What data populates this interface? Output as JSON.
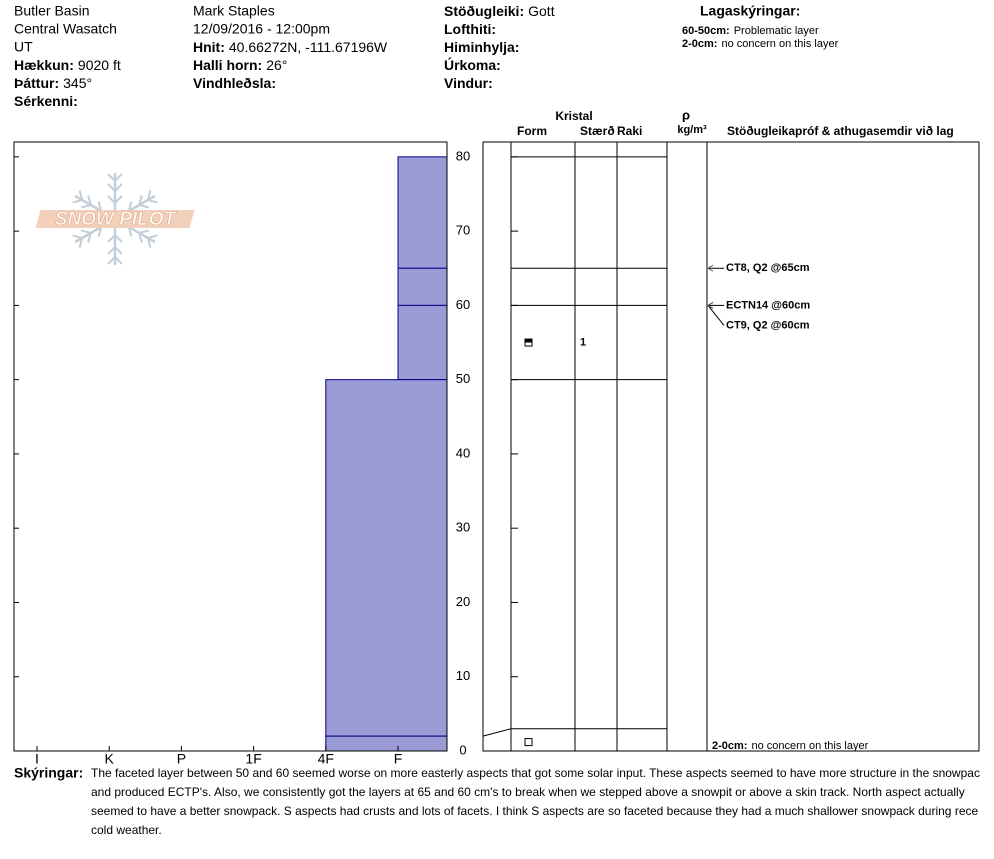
{
  "header": {
    "location": {
      "name": "Butler Basin",
      "range": "Central Wasatch",
      "state": "UT",
      "fields": [
        {
          "label": "Hækkun:",
          "value": "9020 ft"
        },
        {
          "label": "Þáttur:",
          "value": "345°"
        },
        {
          "label": "Sérkenni:"
        }
      ]
    },
    "observer": {
      "name": "Mark Staples",
      "datetime": "12/09/2016 - 12:00pm",
      "fields": [
        {
          "label": "Hnit:",
          "value": "40.66272N, -111.67196W"
        },
        {
          "label": "Halli horn:",
          "value": "26°"
        },
        {
          "label": "Vindhleðsla:"
        }
      ]
    },
    "conditions": [
      {
        "label": "Stöðugleiki:",
        "value": "Gott"
      },
      {
        "label": "Lofthiti:"
      },
      {
        "label": "Himinhylja:"
      },
      {
        "label": "Úrkoma:"
      },
      {
        "label": "Vindur:"
      }
    ],
    "legend": {
      "title": "Lagaskýringar:",
      "items": [
        {
          "label": "60-50cm:",
          "text": "Problematic layer"
        },
        {
          "label": "2-0cm:",
          "text": "no concern on this layer"
        }
      ]
    }
  },
  "logo": "SNOW PILOT",
  "profile": {
    "depth_lim": [
      0,
      82
    ],
    "depth_ticks": [
      0,
      10,
      20,
      30,
      40,
      50,
      60,
      70,
      80
    ],
    "hardness_scale": [
      "I",
      "K",
      "P",
      "1F",
      "4F",
      "F"
    ],
    "color": "#9b9bd7",
    "layers": [
      {
        "top": 80,
        "bottom": 65,
        "hardness": "F"
      },
      {
        "top": 65,
        "bottom": 60,
        "hardness": "F"
      },
      {
        "top": 60,
        "bottom": 50,
        "hardness": "F"
      },
      {
        "top": 50,
        "bottom": 2,
        "hardness": "4F"
      },
      {
        "top": 2,
        "bottom": 0,
        "hardness": "4F"
      }
    ]
  },
  "crystals": {
    "title": "Kristal",
    "columns": [
      "Form",
      "Stærð",
      "Raki"
    ],
    "density_header": "ρ",
    "density_unit": "kg/m³",
    "comments_header": "Stöðugleikapróf & athugasemdir við lag",
    "boundaries": [
      80,
      65,
      60,
      50,
      3
    ],
    "grains": [
      {
        "depth": 55,
        "size": 1,
        "form": "half"
      },
      {
        "depth": 1.2,
        "form": "square"
      }
    ]
  },
  "tests": [
    {
      "text": "CT8, Q2 @65cm",
      "depth": 65
    },
    {
      "text": "ECTN14 @60cm",
      "depth": 60
    },
    {
      "text": "CT9, Q2 @60cm",
      "depth": 60
    }
  ],
  "bottom_note": {
    "label": "2-0cm:",
    "text": "no concern on this layer"
  },
  "notes": {
    "label": "Skýringar:",
    "lines": [
      "The faceted layer between 50 and 60 seemed worse on more easterly aspects that got some solar input. These aspects seemed to have more structure in the snowpac",
      "and produced ECTP's. Also, we consistently got the layers at 65 and 60 cm's to break when we stepped above a snowpit or above a skin track. North aspect actually",
      "seemed to have a better snowpack. S aspects had crusts and lots of facets. I think S aspects are so faceted because they had a much shallower snowpack during rece",
      "cold weather."
    ]
  }
}
